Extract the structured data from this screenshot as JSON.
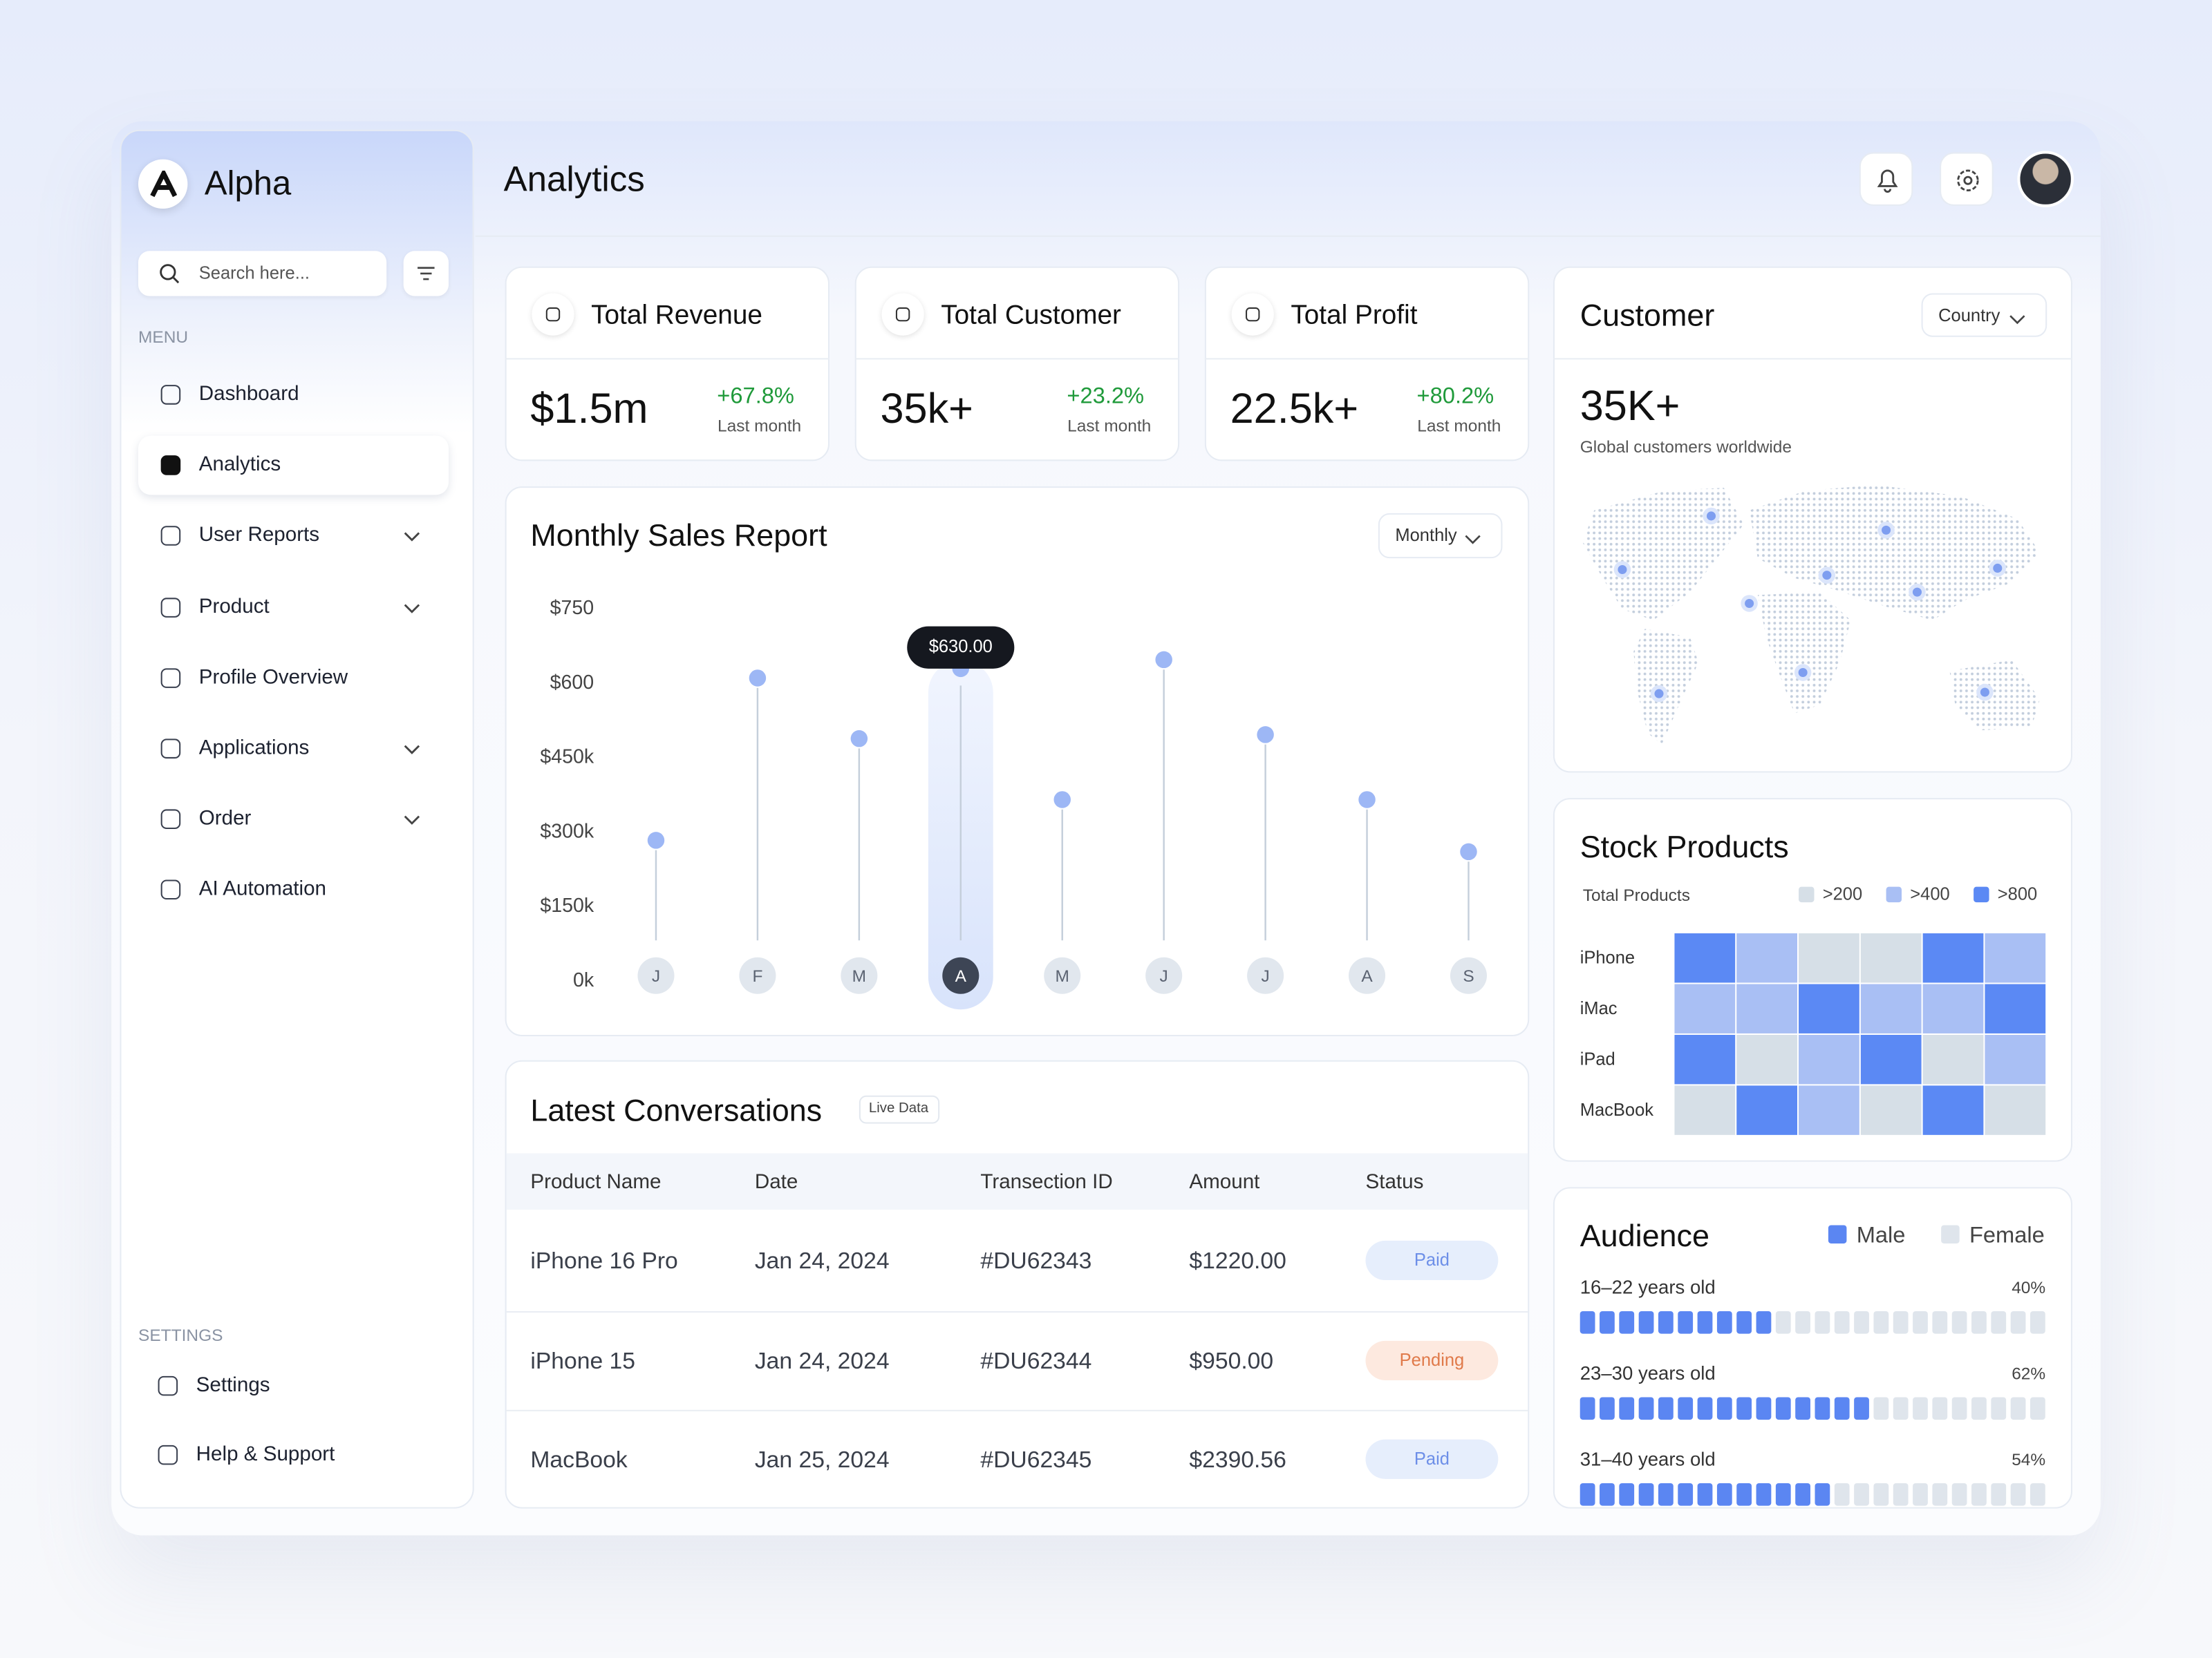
{
  "brand": "Alpha",
  "search_placeholder": "Search here...",
  "menu": {
    "label": "MENU",
    "items": [
      {
        "label": "Dashboard",
        "expandable": false
      },
      {
        "label": "Analytics",
        "expandable": false,
        "active": true
      },
      {
        "label": "User Reports",
        "expandable": true
      },
      {
        "label": "Product",
        "expandable": true
      },
      {
        "label": "Profile Overview",
        "expandable": false
      },
      {
        "label": "Applications",
        "expandable": true
      },
      {
        "label": "Order",
        "expandable": true
      },
      {
        "label": "AI Automation",
        "expandable": false
      }
    ]
  },
  "settings": {
    "label": "SETTINGS",
    "items": [
      "Settings",
      "Help & Support"
    ]
  },
  "page_title": "Analytics",
  "kpis": [
    {
      "title": "Total Revenue",
      "value": "$1.5m",
      "change": "+67.8%",
      "period": "Last month"
    },
    {
      "title": "Total Customer",
      "value": "35k+",
      "change": "+23.2%",
      "period": "Last month"
    },
    {
      "title": "Total Profit",
      "value": "22.5k+",
      "change": "+80.2%",
      "period": "Last month"
    }
  ],
  "chart_data": {
    "type": "lollipop",
    "title": "Monthly Sales Report",
    "filter": "Monthly",
    "categories": [
      "J",
      "F",
      "M",
      "A",
      "M",
      "J",
      "J",
      "A",
      "S"
    ],
    "values": [
      284,
      611,
      489,
      630,
      366,
      648,
      497,
      366,
      261
    ],
    "value_labels": [
      null,
      null,
      null,
      "$630.00",
      null,
      null,
      null,
      null,
      null
    ],
    "color": "#9db7f5",
    "ylim": [
      0,
      750
    ],
    "yticks": [
      {
        "value": 0,
        "label": "0k"
      },
      {
        "value": 150,
        "label": "$150k"
      },
      {
        "value": 300,
        "label": "$300k"
      },
      {
        "value": 450,
        "label": "$450k"
      },
      {
        "value": 600,
        "label": "$600"
      },
      {
        "value": 750,
        "label": "$750"
      }
    ]
  },
  "conversations": {
    "title": "Latest Conversations",
    "badge": "Live Data",
    "columns": [
      "Product Name",
      "Date",
      "Transection ID",
      "Amount",
      "Status"
    ],
    "rows": [
      {
        "cells": [
          "iPhone 16 Pro",
          "Jan 24, 2024",
          "#DU62343",
          "$1220.00"
        ],
        "status": "Paid",
        "status_color": "#6d8fe8",
        "status_bg": "#e6eefc"
      },
      {
        "cells": [
          "iPhone 15",
          "Jan 24, 2024",
          "#DU62344",
          "$950.00"
        ],
        "status": "Pending",
        "status_color": "#e07a4a",
        "status_bg": "#fde9df"
      },
      {
        "cells": [
          "MacBook",
          "Jan 25, 2024",
          "#DU62345",
          "$2390.56"
        ],
        "status": "Paid",
        "status_color": "#6d8fe8",
        "status_bg": "#e6eefc"
      }
    ]
  },
  "customer": {
    "title": "Customer",
    "filter": "Country",
    "value": "35K+",
    "subtitle": "Global customers worldwide"
  },
  "stock_products": {
    "title": "Stock Products",
    "subtitle": "Total Products",
    "legend": [
      {
        "value": 200,
        "label": ">200",
        "color": "#d6dfe7"
      },
      {
        "value": 400,
        "label": ">400",
        "color": "#a9bff4"
      },
      {
        "value": 800,
        "label": ">800",
        "color": "#5b89f4"
      }
    ],
    "rows": [
      "iPhone",
      "iMac",
      "iPad",
      "MacBook"
    ],
    "values": [
      [
        800,
        400,
        200,
        200,
        800,
        400
      ],
      [
        400,
        400,
        800,
        400,
        400,
        800
      ],
      [
        800,
        200,
        400,
        800,
        200,
        400
      ],
      [
        200,
        800,
        400,
        200,
        800,
        200
      ]
    ]
  },
  "audience": {
    "title": "Audience",
    "legend": [
      {
        "name": "Male",
        "color": "#5b86f2"
      },
      {
        "name": "Female",
        "color": "#dfe5ec"
      }
    ],
    "groups": [
      {
        "label": "16–22 years old",
        "value": 40,
        "value_label": "40%"
      },
      {
        "label": "23–30 years old",
        "value": 62,
        "value_label": "62%"
      },
      {
        "label": "31–40 years old",
        "value": 54,
        "value_label": "54%"
      }
    ]
  }
}
